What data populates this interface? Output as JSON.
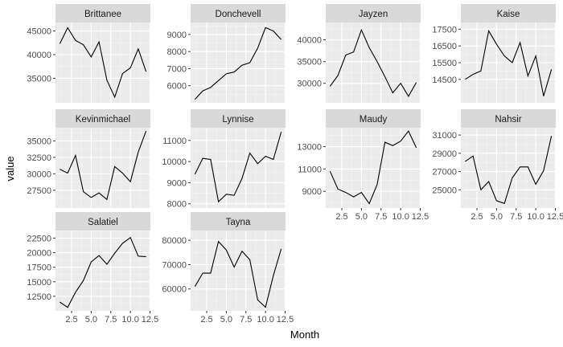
{
  "chart_data": {
    "type": "line",
    "xlabel": "Month",
    "ylabel": "value",
    "x": [
      1,
      2,
      3,
      4,
      5,
      6,
      7,
      8,
      9,
      10,
      11,
      12
    ],
    "xlim": [
      0.45,
      12.55
    ],
    "x_ticks": [
      2.5,
      5.0,
      7.5,
      10.0,
      12.5
    ],
    "x_tick_labels": [
      "2.5",
      "5.0",
      "7.5",
      "10.0",
      "12.5"
    ],
    "panels": [
      {
        "name": "Brittanee",
        "ylim": [
          29800,
          46800
        ],
        "yticks": [
          35000,
          40000,
          45000
        ],
        "ytick_labels": [
          "35000",
          "40000",
          "45000"
        ],
        "values": [
          42300,
          45700,
          43000,
          42100,
          39500,
          42700,
          34600,
          31000,
          36000,
          37200,
          41200,
          36400
        ]
      },
      {
        "name": "Donchevell",
        "ylim": [
          5000,
          9700
        ],
        "yticks": [
          6000,
          7000,
          8000,
          9000
        ],
        "ytick_labels": [
          "6000",
          "7000",
          "8000",
          "9000"
        ],
        "values": [
          5200,
          5700,
          5900,
          6300,
          6700,
          6800,
          7200,
          7350,
          8200,
          9400,
          9200,
          8700
        ]
      },
      {
        "name": "Jayzen",
        "ylim": [
          25500,
          44000
        ],
        "yticks": [
          30000,
          35000,
          40000
        ],
        "ytick_labels": [
          "30000",
          "35000",
          "40000"
        ],
        "values": [
          29300,
          31800,
          36500,
          37200,
          42300,
          38200,
          35000,
          31500,
          27800,
          30000,
          27000,
          30200
        ]
      },
      {
        "name": "Kaise",
        "ylim": [
          13100,
          17900
        ],
        "yticks": [
          14500,
          15500,
          16500,
          17500
        ],
        "ytick_labels": [
          "14500",
          "15500",
          "16500",
          "17500"
        ],
        "values": [
          14500,
          14800,
          15000,
          17400,
          16600,
          15900,
          15500,
          16700,
          14700,
          15900,
          13500,
          15100
        ]
      },
      {
        "name": "Kevinmichael",
        "ylim": [
          24800,
          37000
        ],
        "yticks": [
          27500,
          30000,
          32500,
          35000
        ],
        "ytick_labels": [
          "27500",
          "30000",
          "32500",
          "35000"
        ],
        "values": [
          30700,
          30100,
          32800,
          27300,
          26400,
          27100,
          26100,
          31100,
          30100,
          28800,
          33300,
          36500
        ]
      },
      {
        "name": "Lynnise",
        "ylim": [
          7800,
          11600
        ],
        "yticks": [
          8000,
          9000,
          10000,
          11000
        ],
        "ytick_labels": [
          "8000",
          "9000",
          "10000",
          "11000"
        ],
        "values": [
          9400,
          10150,
          10100,
          8100,
          8450,
          8400,
          9200,
          10400,
          9900,
          10250,
          10100,
          11400
        ]
      },
      {
        "name": "Maudy",
        "ylim": [
          7500,
          14700
        ],
        "yticks": [
          9000,
          11000,
          13000
        ],
        "ytick_labels": [
          "9000",
          "11000",
          "13000"
        ],
        "values": [
          10800,
          9200,
          8900,
          8500,
          8900,
          7900,
          9600,
          13400,
          13100,
          13500,
          14400,
          12900
        ]
      },
      {
        "name": "Nahsir",
        "ylim": [
          23000,
          31800
        ],
        "yticks": [
          25000,
          27000,
          29000,
          31000
        ],
        "ytick_labels": [
          "25000",
          "27000",
          "29000",
          "31000"
        ],
        "values": [
          28100,
          28700,
          25000,
          25900,
          23800,
          23500,
          26300,
          27500,
          27500,
          25600,
          27100,
          30900
        ]
      },
      {
        "name": "Salatiel",
        "ylim": [
          10000,
          23800
        ],
        "yticks": [
          12500,
          15000,
          17500,
          20000,
          22500
        ],
        "ytick_labels": [
          "12500",
          "15000",
          "17500",
          "20000",
          "22500"
        ],
        "values": [
          11500,
          10600,
          13200,
          15200,
          18400,
          19500,
          18000,
          19900,
          21600,
          22600,
          19400,
          19300
        ]
      },
      {
        "name": "Tayna",
        "ylim": [
          51000,
          84000
        ],
        "yticks": [
          60000,
          70000,
          80000
        ],
        "ytick_labels": [
          "60000",
          "70000",
          "80000"
        ],
        "values": [
          61000,
          66500,
          66500,
          79500,
          76000,
          69000,
          75500,
          72000,
          55500,
          52500,
          65500,
          76500
        ]
      }
    ]
  }
}
